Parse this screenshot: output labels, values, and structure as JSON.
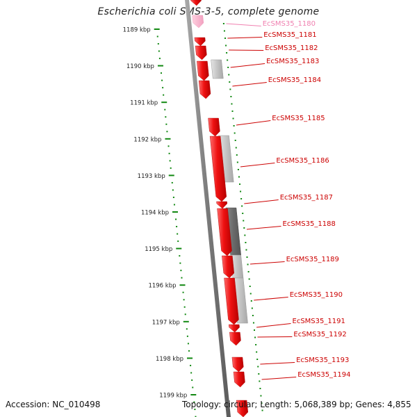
{
  "title": "Escherichia coli SMS-3-5, complete genome",
  "footer": {
    "accession": "Accession: NC_010498",
    "stats": "Topology: circular; Length: 5,068,389 bp; Genes: 4,855"
  },
  "colors": {
    "gene_forward": "#ee1111",
    "gene_label": "#cc0000",
    "gene_label_faded": "#f080b0",
    "backbone": "#888888",
    "ticks": "#118811",
    "homology_light": "#c4c4c4",
    "homology_dark": "#6a6a6a",
    "text": "#222222"
  },
  "ruler": {
    "unit": "kbp",
    "ticks": [
      "1189 kbp",
      "1190 kbp",
      "1191 kbp",
      "1192 kbp",
      "1193 kbp",
      "1194 kbp",
      "1195 kbp",
      "1196 kbp",
      "1197 kbp",
      "1198 kbp",
      "1199 kbp"
    ]
  },
  "genes": [
    {
      "label": "EcSMS35_1180",
      "faded": true
    },
    {
      "label": "EcSMS35_1181"
    },
    {
      "label": "EcSMS35_1182"
    },
    {
      "label": "EcSMS35_1183"
    },
    {
      "label": "EcSMS35_1184"
    },
    {
      "label": "EcSMS35_1185"
    },
    {
      "label": "EcSMS35_1186"
    },
    {
      "label": "EcSMS35_1187"
    },
    {
      "label": "EcSMS35_1188"
    },
    {
      "label": "EcSMS35_1189"
    },
    {
      "label": "EcSMS35_1190"
    },
    {
      "label": "EcSMS35_1191"
    },
    {
      "label": "EcSMS35_1192"
    },
    {
      "label": "EcSMS35_1193"
    },
    {
      "label": "EcSMS35_1194"
    }
  ]
}
